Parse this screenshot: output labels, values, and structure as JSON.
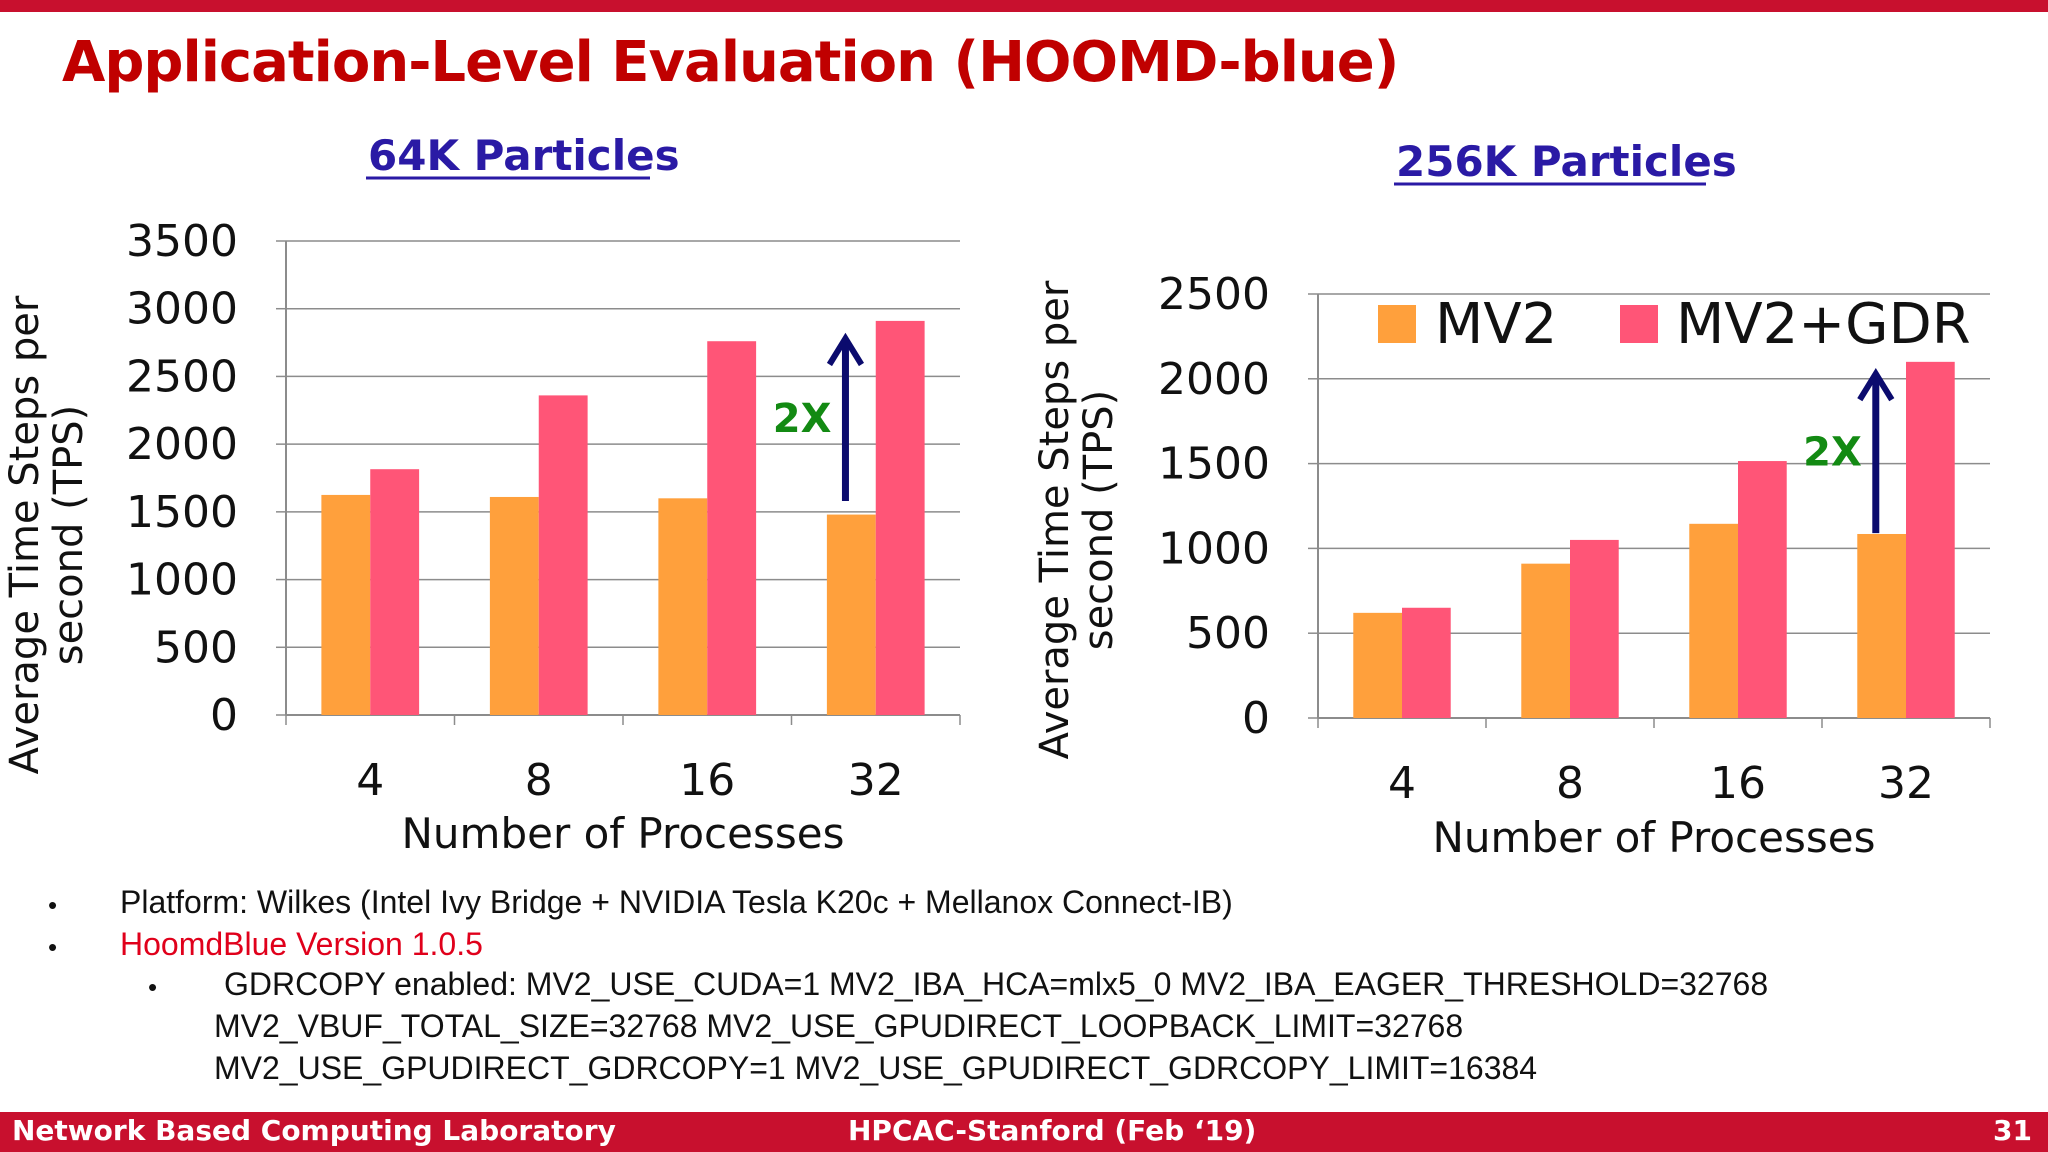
{
  "slide": {
    "title": "Application-Level Evaluation (HOOMD-blue)",
    "accent_color": "#c8102e",
    "title_color": "#c00000"
  },
  "chart_data": [
    {
      "type": "bar",
      "title": "64K Particles",
      "xlabel": "Number of Processes",
      "ylabel_lines": [
        "Average Time Steps per",
        "second (TPS)"
      ],
      "categories": [
        "4",
        "8",
        "16",
        "32"
      ],
      "ylim": [
        0,
        3500
      ],
      "yticks": [
        0,
        500,
        1000,
        1500,
        2000,
        2500,
        3000,
        3500
      ],
      "grid": true,
      "series": [
        {
          "name": "MV2",
          "color": "#ffa03c",
          "values": [
            1625,
            1610,
            1600,
            1480
          ]
        },
        {
          "name": "MV2+GDR",
          "color": "#ff5577",
          "values": [
            1815,
            2360,
            2760,
            2910
          ]
        }
      ],
      "annotation": {
        "text": "2X",
        "color": "#138a13",
        "arrow_color": "#0b0b6e",
        "category": "32",
        "from": 1580,
        "to": 2780
      }
    },
    {
      "type": "bar",
      "title": "256K Particles",
      "xlabel": "Number of Processes",
      "ylabel_lines": [
        "Average Time Steps per",
        "second (TPS)"
      ],
      "categories": [
        "4",
        "8",
        "16",
        "32"
      ],
      "ylim": [
        0,
        2500
      ],
      "yticks": [
        0,
        500,
        1000,
        1500,
        2000,
        2500
      ],
      "grid": true,
      "legend_position": "top",
      "series": [
        {
          "name": "MV2",
          "color": "#ffa03c",
          "values": [
            620,
            910,
            1145,
            1085
          ]
        },
        {
          "name": "MV2+GDR",
          "color": "#ff5577",
          "values": [
            650,
            1050,
            1515,
            2100
          ]
        }
      ],
      "annotation": {
        "text": "2X",
        "color": "#138a13",
        "arrow_color": "#0b0b6e",
        "category": "32",
        "from": 1090,
        "to": 2030
      }
    }
  ],
  "bullets": {
    "platform": "Platform: Wilkes (Intel Ivy Bridge + NVIDIA Tesla K20c + Mellanox Connect-IB)",
    "version": "HoomdBlue Version 1.0.5",
    "version_color": "#e0001b",
    "gdrcopy_lines": [
      "GDRCOPY enabled: MV2_USE_CUDA=1 MV2_IBA_HCA=mlx5_0 MV2_IBA_EAGER_THRESHOLD=32768",
      "MV2_VBUF_TOTAL_SIZE=32768 MV2_USE_GPUDIRECT_LOOPBACK_LIMIT=32768",
      "MV2_USE_GPUDIRECT_GDRCOPY=1 MV2_USE_GPUDIRECT_GDRCOPY_LIMIT=16384"
    ]
  },
  "footer": {
    "left": "Network Based Computing Laboratory",
    "center": "HPCAC-Stanford (Feb ‘19)",
    "page": "31"
  }
}
